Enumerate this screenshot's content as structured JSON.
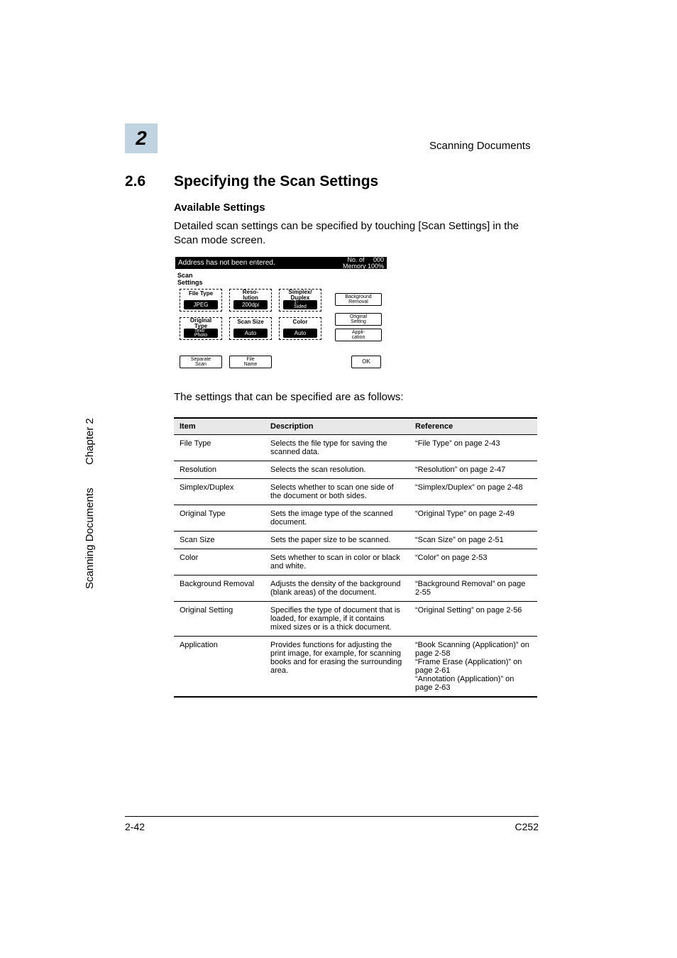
{
  "header": {
    "right": "Scanning Documents",
    "chapter_number": "2"
  },
  "sidebar": {
    "scanning": "Scanning Documents",
    "chapter": "Chapter 2"
  },
  "section": {
    "number": "2.6",
    "title": "Specifying the Scan Settings",
    "subhead": "Available Settings"
  },
  "para1": "Detailed scan settings can be specified by touching [Scan Settings] in the Scan mode screen.",
  "para2": "The settings that can be specified are as follows:",
  "lcd": {
    "bar_left": "Address has not been entered.",
    "bar_right_top": "No. of     000",
    "bar_right_mid": "Dest.",
    "bar_right_bot": "Memory 100%",
    "scan_settings": "Scan\nSettings",
    "group1_head": "File Type",
    "group1_val": "JPEG",
    "group2_head": "Reso-\nlution",
    "group2_val": "200dpi",
    "group3_head": "Simplex/\nDuplex",
    "group3_val": "1-\nSided",
    "group4_head": "Original\nType",
    "group4_val": "Text/\nPhoto",
    "group5_head": "Scan Size",
    "group5_val": "Auto",
    "group6_head": "Color",
    "group6_val": "Auto",
    "right1": "Background\nRemoval",
    "right2": "Original\nSetting",
    "right3": "Appli-\ncation",
    "bottom1": "Separate\nScan",
    "bottom2": "File\nName",
    "ok": "OK"
  },
  "table": {
    "headers": [
      "Item",
      "Description",
      "Reference"
    ],
    "rows": [
      [
        "File Type",
        "Selects the file type for saving the scanned data.",
        "“File Type” on page 2-43"
      ],
      [
        "Resolution",
        "Selects the scan resolution.",
        "“Resolution” on page 2-47"
      ],
      [
        "Simplex/Duplex",
        "Selects whether to scan one side of the document or both sides.",
        "“Simplex/Duplex” on page 2-48"
      ],
      [
        "Original Type",
        "Sets the image type of the scanned document.",
        "“Original Type” on page 2-49"
      ],
      [
        "Scan Size",
        "Sets the paper size to be scanned.",
        "“Scan Size” on page 2-51"
      ],
      [
        "Color",
        "Sets whether to scan in color or black and white.",
        "“Color” on page 2-53"
      ],
      [
        "Background Removal",
        "Adjusts the density of the background (blank areas) of the document.",
        "“Background Removal” on page 2-55"
      ],
      [
        "Original Setting",
        "Specifies the type of document that is loaded, for example, if it contains mixed sizes or is a thick document.",
        "“Original Setting” on page 2-56"
      ],
      [
        "Application",
        "Provides functions for adjusting the print image, for example, for scanning books and for erasing the surrounding area.",
        "“Book Scanning (Application)” on page 2-58\n“Frame Erase (Application)” on page 2-61\n“Annotation (Application)” on page 2-63"
      ]
    ]
  },
  "footer": {
    "left": "2-42",
    "right": "C252"
  }
}
